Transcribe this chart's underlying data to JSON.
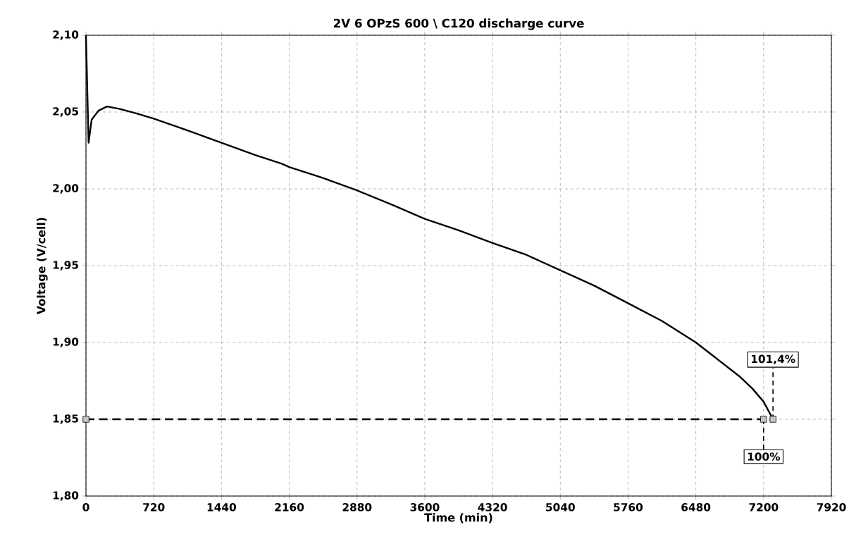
{
  "chart_data": {
    "type": "line",
    "title": "2V 6 OPzS 600 \\  C120 discharge curve",
    "xlabel": "Time (min)",
    "ylabel": "Voltage (V/cell)",
    "series": [
      {
        "color": "#000000",
        "marker": "none",
        "line_style": "solid",
        "x": [
          0,
          28,
          60,
          135,
          225,
          360,
          540,
          720,
          1080,
          1440,
          1800,
          2081,
          2160,
          2520,
          2880,
          3240,
          3600,
          3960,
          4320,
          4680,
          5040,
          5400,
          5760,
          6120,
          6480,
          6942,
          7080,
          7200,
          7300
        ],
        "values": [
          2.1,
          2.03,
          2.045,
          2.051,
          2.0536,
          2.052,
          2.049,
          2.0457,
          2.038,
          2.03,
          2.022,
          2.0163,
          2.0142,
          2.007,
          1.999,
          1.99,
          1.9804,
          1.973,
          1.9647,
          1.957,
          1.947,
          1.937,
          1.9255,
          1.914,
          1.9,
          1.878,
          1.87,
          1.8614,
          1.85
        ]
      },
      {
        "color": "#000000",
        "marker": "square",
        "line_style": "dashed",
        "x": [
          0,
          7200,
          7300
        ],
        "values": [
          1.85,
          1.85,
          1.85
        ]
      }
    ],
    "annotations": [
      {
        "text": "100%",
        "x": 7200,
        "y": 1.85
      },
      {
        "text": "101,4%",
        "x": 7300,
        "y": 1.85
      }
    ],
    "xlim": [
      0,
      7920
    ],
    "ylim": [
      1.8,
      2.1
    ],
    "xticks": [
      0,
      720,
      1440,
      2160,
      2880,
      3600,
      4320,
      5040,
      5760,
      6480,
      7200,
      7920
    ],
    "yticks": [
      {
        "value": 1.8,
        "label": "1,80"
      },
      {
        "value": 1.85,
        "label": "1,85"
      },
      {
        "value": 1.9,
        "label": "1,90"
      },
      {
        "value": 1.95,
        "label": "1,95"
      },
      {
        "value": 2.0,
        "label": "2,00"
      },
      {
        "value": 2.05,
        "label": "2,05"
      },
      {
        "value": 2.1,
        "label": "2,10"
      }
    ],
    "grid": true
  }
}
